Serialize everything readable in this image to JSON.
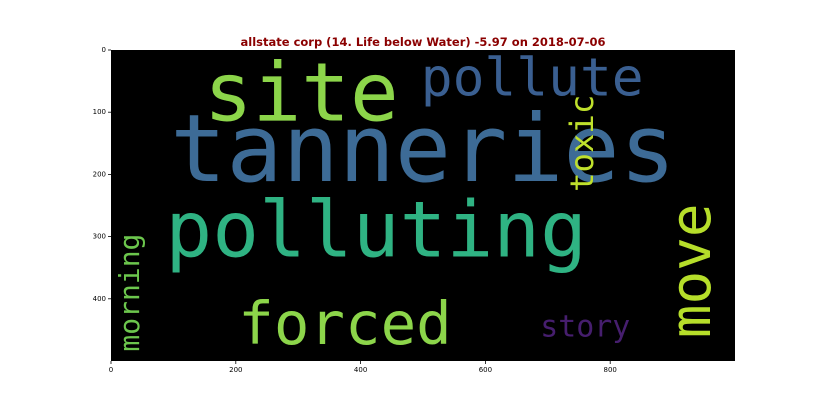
{
  "chart_data": {
    "type": "wordcloud",
    "title": "allstate corp (14. Life below Water) -5.97 on 2018-07-06",
    "title_color": "#8b0000",
    "background": "#000000",
    "xlim": [
      0,
      1000
    ],
    "ylim": [
      500,
      0
    ],
    "xticks": [
      0,
      200,
      400,
      600,
      800
    ],
    "yticks": [
      0,
      100,
      200,
      300,
      400
    ],
    "words": [
      {
        "text": "tanneries",
        "x": 500,
        "y": 160,
        "size": 150,
        "rotate": 0,
        "color": "#3d6b96"
      },
      {
        "text": "polluting",
        "x": 425,
        "y": 290,
        "size": 125,
        "rotate": 0,
        "color": "#2fb383"
      },
      {
        "text": "site",
        "x": 305,
        "y": 70,
        "size": 130,
        "rotate": 0,
        "color": "#8cd54a"
      },
      {
        "text": "pollute",
        "x": 675,
        "y": 45,
        "size": 85,
        "rotate": 0,
        "color": "#3a5f91"
      },
      {
        "text": "forced",
        "x": 375,
        "y": 440,
        "size": 95,
        "rotate": 0,
        "color": "#8cd54a"
      },
      {
        "text": "move",
        "x": 930,
        "y": 355,
        "size": 90,
        "rotate": -90,
        "color": "#b6de2a"
      },
      {
        "text": "toxic",
        "x": 755,
        "y": 150,
        "size": 52,
        "rotate": -90,
        "color": "#bfe02c"
      },
      {
        "text": "morning",
        "x": 30,
        "y": 390,
        "size": 45,
        "rotate": -90,
        "color": "#6cc64d"
      },
      {
        "text": "story",
        "x": 760,
        "y": 445,
        "size": 48,
        "rotate": 0,
        "color": "#461e6e"
      }
    ]
  }
}
